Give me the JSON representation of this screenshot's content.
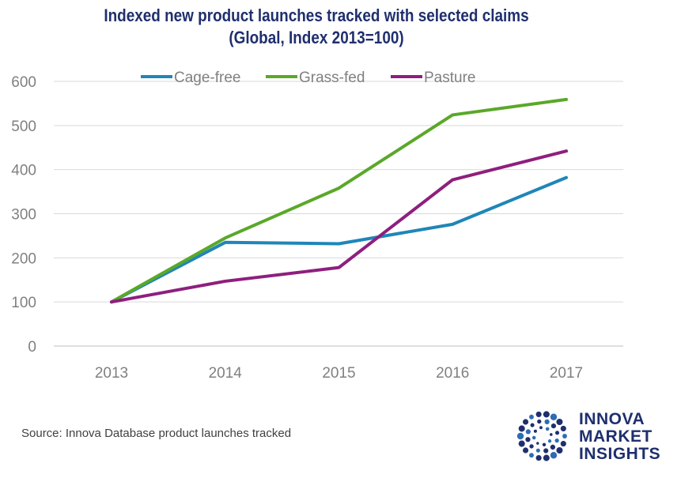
{
  "chart_data": {
    "type": "line",
    "title": "Indexed new product launches tracked with selected claims",
    "subtitle": "(Global, Index 2013=100)",
    "categories": [
      "2013",
      "2014",
      "2015",
      "2016",
      "2017"
    ],
    "series": [
      {
        "name": "Cage-free",
        "color": "#1f86b8",
        "values": [
          100,
          235,
          232,
          276,
          382
        ]
      },
      {
        "name": "Grass-fed",
        "color": "#5aa829",
        "values": [
          100,
          245,
          358,
          524,
          559
        ]
      },
      {
        "name": "Pasture",
        "color": "#8e1f7e",
        "values": [
          100,
          147,
          178,
          377,
          442
        ]
      }
    ],
    "yticks": [
      0,
      100,
      200,
      300,
      400,
      500,
      600
    ],
    "ylim": [
      0,
      600
    ],
    "grid": true,
    "legend": "top"
  },
  "footer": {
    "source": "Source: Innova Database product launches tracked"
  },
  "brand": {
    "line1": "INNOVA",
    "line2": "MARKET",
    "line3": "INSIGHTS",
    "color": "#1f2f6e"
  }
}
